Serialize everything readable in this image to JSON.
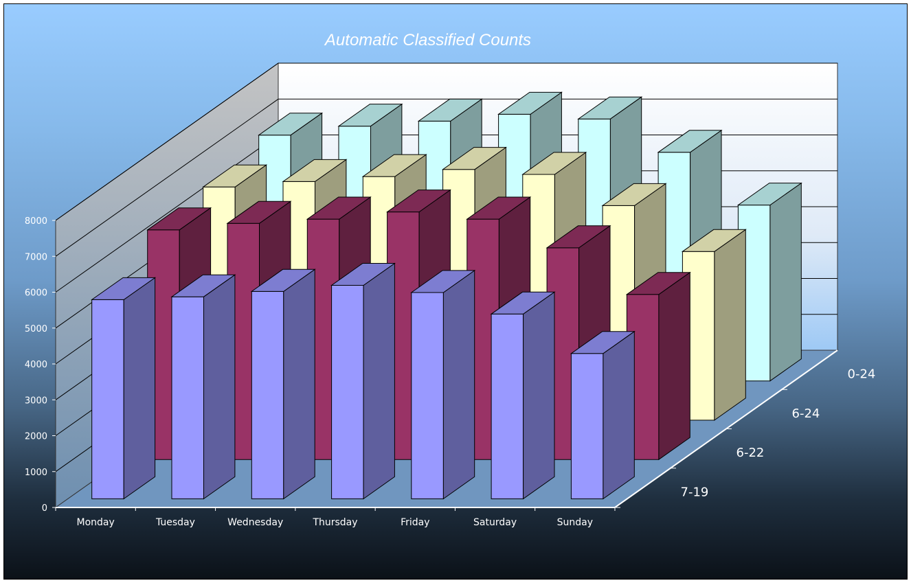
{
  "chart_data": {
    "type": "bar",
    "variant": "3d-column",
    "title": "Automatic Classified Counts",
    "xlabel": "",
    "ylabel": "",
    "ylim": [
      0,
      8000
    ],
    "yticks": [
      "0",
      "1000",
      "2000",
      "3000",
      "4000",
      "5000",
      "6000",
      "7000",
      "8000"
    ],
    "grid": true,
    "categories": [
      "Monday",
      "Tuesday",
      "Wednesday",
      "Thursday",
      "Friday",
      "Saturday",
      "Sunday"
    ],
    "series": [
      {
        "name": "7-19",
        "color": "#9999ff",
        "values": [
          5550,
          5630,
          5780,
          5950,
          5750,
          5150,
          4050
        ]
      },
      {
        "name": "6-22",
        "color": "#993366",
        "values": [
          6400,
          6580,
          6700,
          6900,
          6700,
          5900,
          4600
        ]
      },
      {
        "name": "6-24",
        "color": "#ffffcc",
        "values": [
          6500,
          6650,
          6790,
          6990,
          6850,
          5980,
          4700
        ]
      },
      {
        "name": "0-24",
        "color": "#ccffff",
        "values": [
          6850,
          7100,
          7240,
          7430,
          7300,
          6370,
          4900
        ]
      }
    ]
  }
}
